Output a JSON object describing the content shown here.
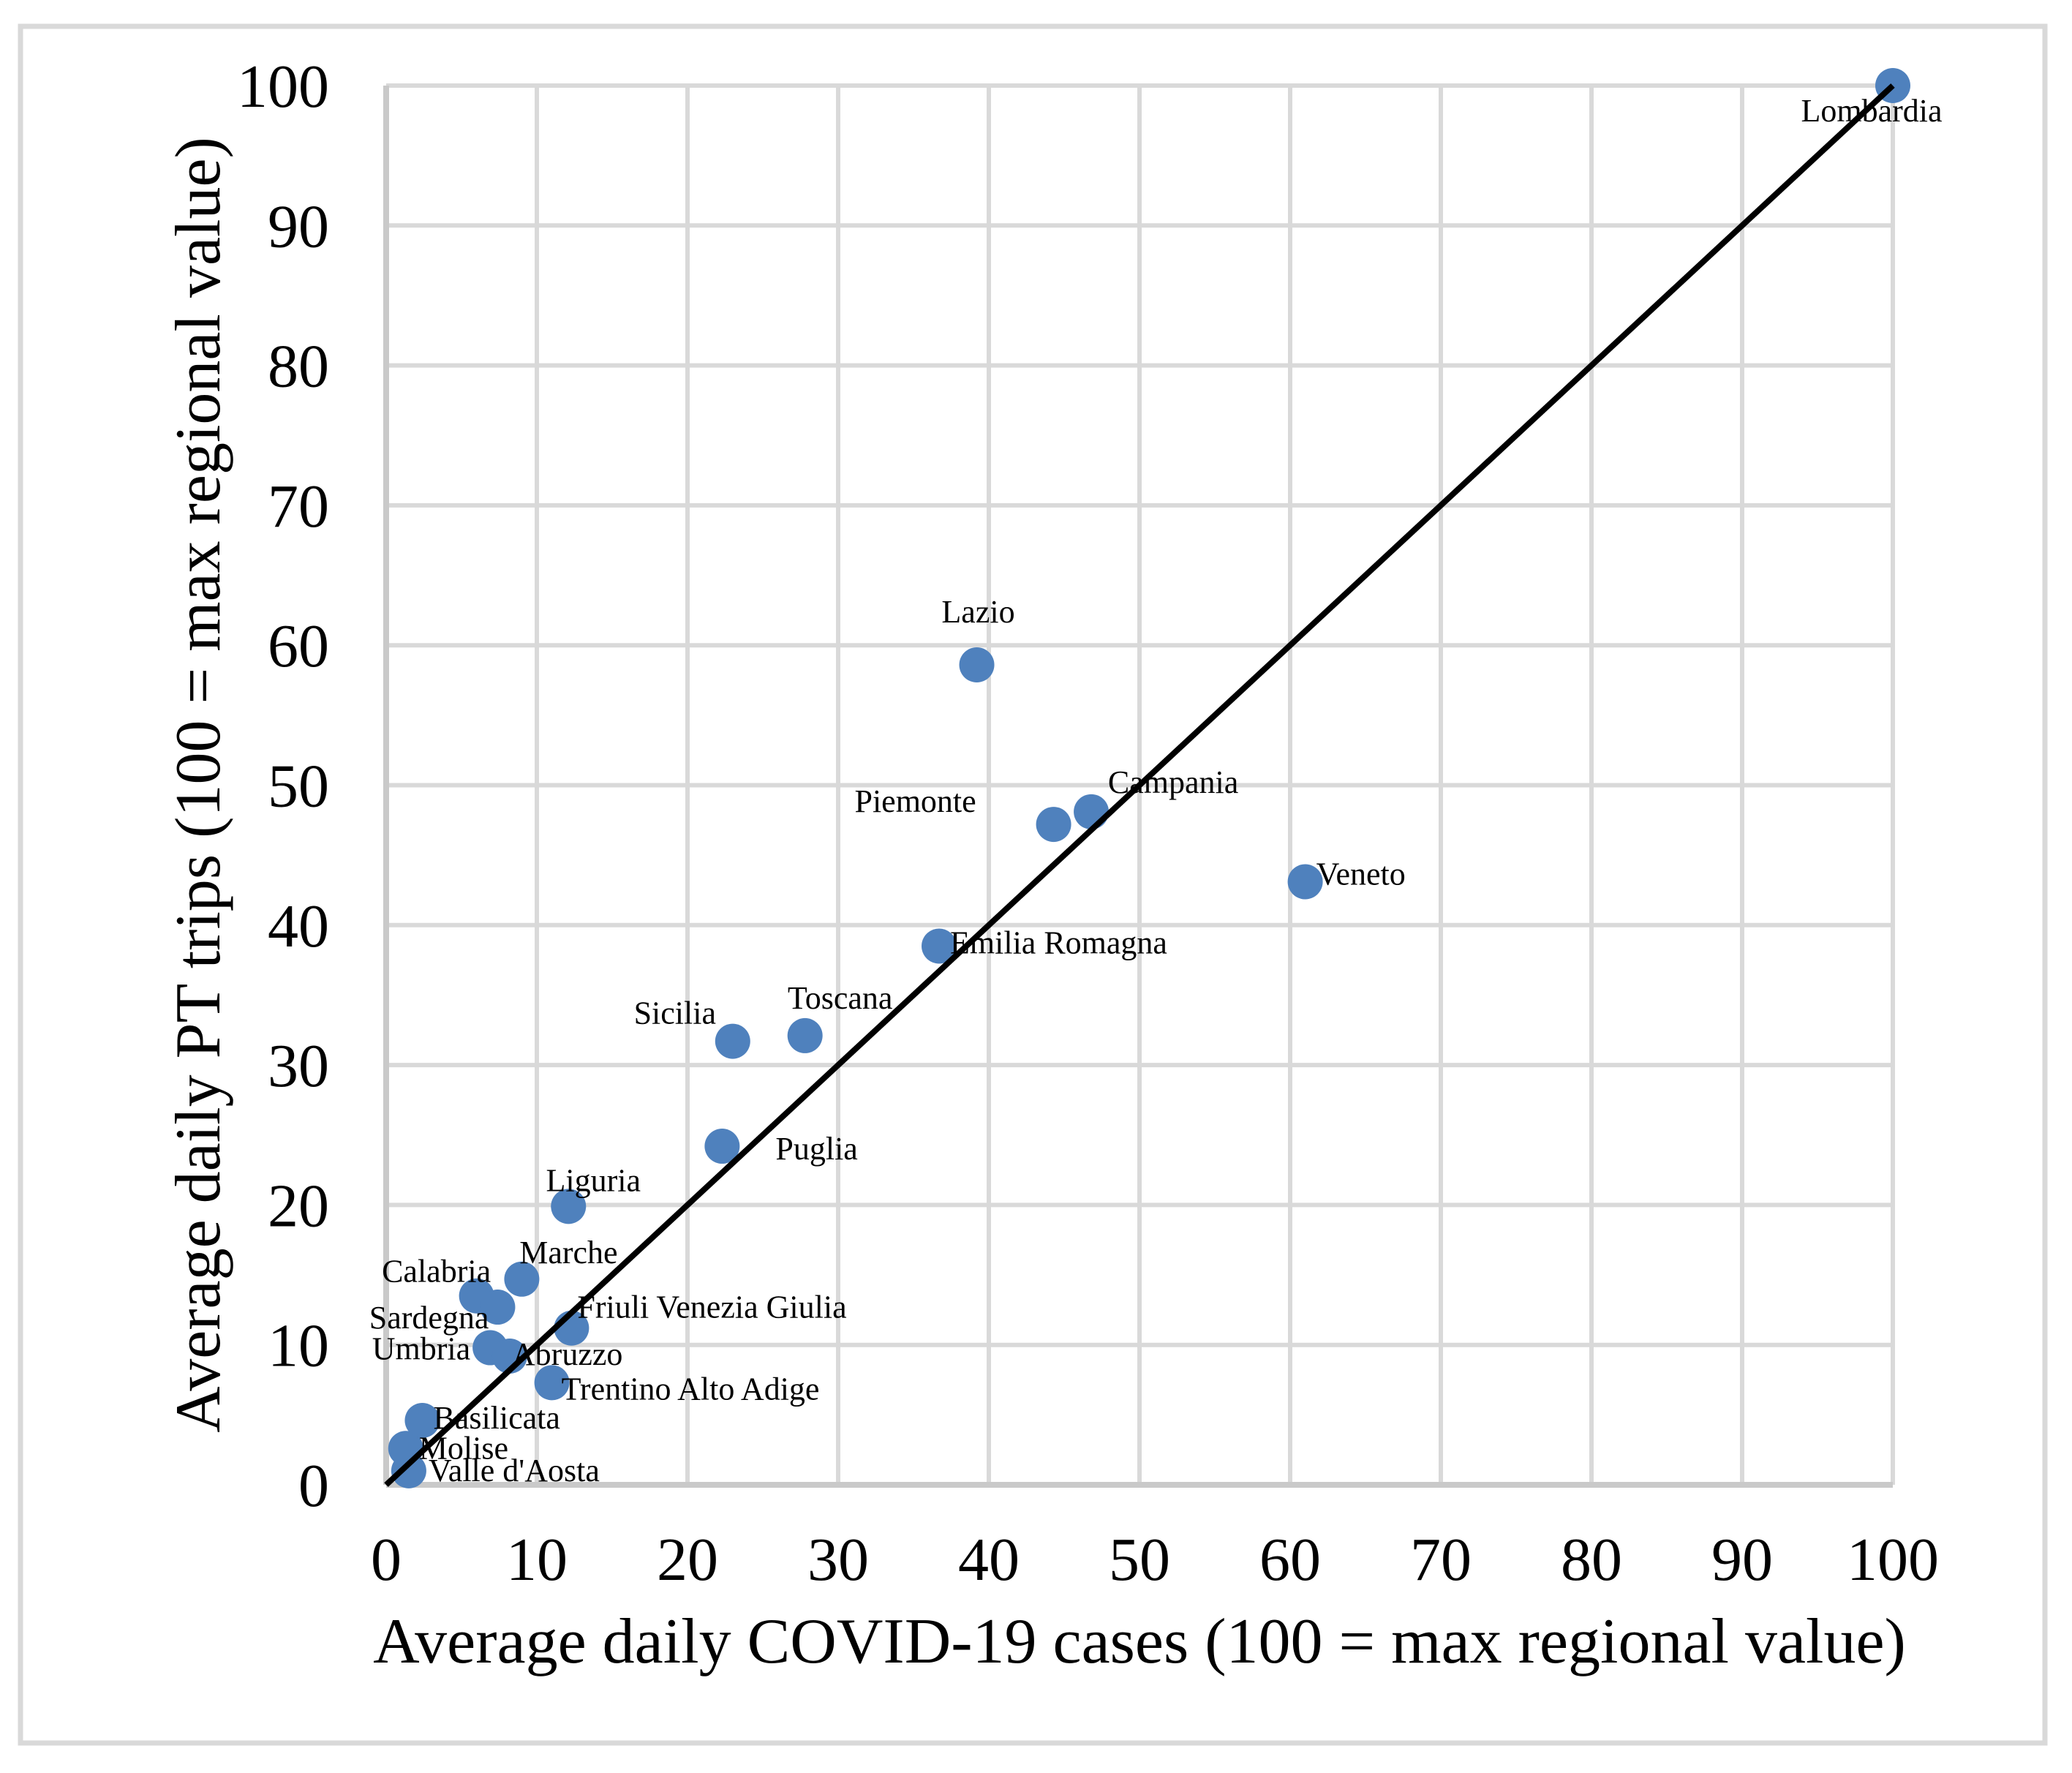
{
  "figure": {
    "background": "#ffffff",
    "border_color": "#d9d9d9"
  },
  "chart_data": {
    "type": "scatter",
    "title": "",
    "xlabel": "Average daily COVID-19 cases (100 = max regional value)",
    "ylabel": "Average daily PT trips (100 = max regional value)",
    "xlim": [
      0,
      100
    ],
    "ylim": [
      0,
      100
    ],
    "xticks": [
      0,
      10,
      20,
      30,
      40,
      50,
      60,
      70,
      80,
      90,
      100
    ],
    "yticks": [
      0,
      10,
      20,
      30,
      40,
      50,
      60,
      70,
      80,
      90,
      100
    ],
    "grid": true,
    "gridline_color": "#d9d9d9",
    "axis_line_color": "#c9c9c9",
    "point_color": "#4f81bd",
    "trendline": {
      "x1": 0,
      "y1": 0,
      "x2": 100,
      "y2": 100,
      "color": "#000000"
    },
    "series": [
      {
        "name": "Regions",
        "points": [
          {
            "name": "Valle d'Aosta",
            "x": 1.5,
            "y": 1.0,
            "label_dx": 27,
            "label_dy": 14,
            "anchor": "start"
          },
          {
            "name": "Molise",
            "x": 1.3,
            "y": 2.6,
            "label_dx": 18,
            "label_dy": 14,
            "anchor": "start"
          },
          {
            "name": "Basilicata",
            "x": 2.4,
            "y": 4.6,
            "label_dx": 15,
            "label_dy": 11,
            "anchor": "start"
          },
          {
            "name": "Calabria",
            "x": 6.0,
            "y": 13.5,
            "label_dx": -55,
            "label_dy": -19,
            "anchor": "middle"
          },
          {
            "name": "Sardegna",
            "x": 7.4,
            "y": 12.7,
            "label_dx": -12,
            "label_dy": 29,
            "anchor": "end"
          },
          {
            "name": "Umbria",
            "x": 6.9,
            "y": 9.8,
            "label_dx": -27,
            "label_dy": 16,
            "anchor": "end"
          },
          {
            "name": "Abruzzo",
            "x": 8.2,
            "y": 9.2,
            "label_dx": 3,
            "label_dy": 12,
            "anchor": "start"
          },
          {
            "name": "Marche",
            "x": 9.0,
            "y": 14.7,
            "label_dx": 64,
            "label_dy": -22,
            "anchor": "middle"
          },
          {
            "name": "Trentino Alto Adige",
            "x": 11.0,
            "y": 7.3,
            "label_dx": 13,
            "label_dy": 23,
            "anchor": "start"
          },
          {
            "name": "Friuli Venezia Giulia",
            "x": 12.3,
            "y": 11.2,
            "label_dx": 8,
            "label_dy": -14,
            "anchor": "start"
          },
          {
            "name": "Liguria",
            "x": 12.1,
            "y": 19.9,
            "label_dx": 34,
            "label_dy": -21,
            "anchor": "middle"
          },
          {
            "name": "Puglia",
            "x": 22.3,
            "y": 24.2,
            "label_dx": 73,
            "label_dy": 18,
            "anchor": "start"
          },
          {
            "name": "Sicilia",
            "x": 23.0,
            "y": 31.7,
            "label_dx": -79,
            "label_dy": -24,
            "anchor": "middle"
          },
          {
            "name": "Toscana",
            "x": 27.8,
            "y": 32.1,
            "label_dx": 48,
            "label_dy": -37,
            "anchor": "middle"
          },
          {
            "name": "Emilia Romagna",
            "x": 36.7,
            "y": 38.5,
            "label_dx": 15,
            "label_dy": 10,
            "anchor": "start"
          },
          {
            "name": "Lazio",
            "x": 39.2,
            "y": 58.6,
            "label_dx": 2,
            "label_dy": -58,
            "anchor": "middle"
          },
          {
            "name": "Piemonte",
            "x": 44.3,
            "y": 47.2,
            "label_dx": -189,
            "label_dy": -17,
            "anchor": "middle"
          },
          {
            "name": "Campania",
            "x": 46.8,
            "y": 48.1,
            "label_dx": 112,
            "label_dy": -26,
            "anchor": "middle"
          },
          {
            "name": "Veneto",
            "x": 61.0,
            "y": 43.1,
            "label_dx": 15,
            "label_dy": 4,
            "anchor": "start"
          },
          {
            "name": "Lombardia",
            "x": 100,
            "y": 100,
            "label_dx": -29,
            "label_dy": 49,
            "anchor": "middle"
          }
        ]
      }
    ]
  }
}
